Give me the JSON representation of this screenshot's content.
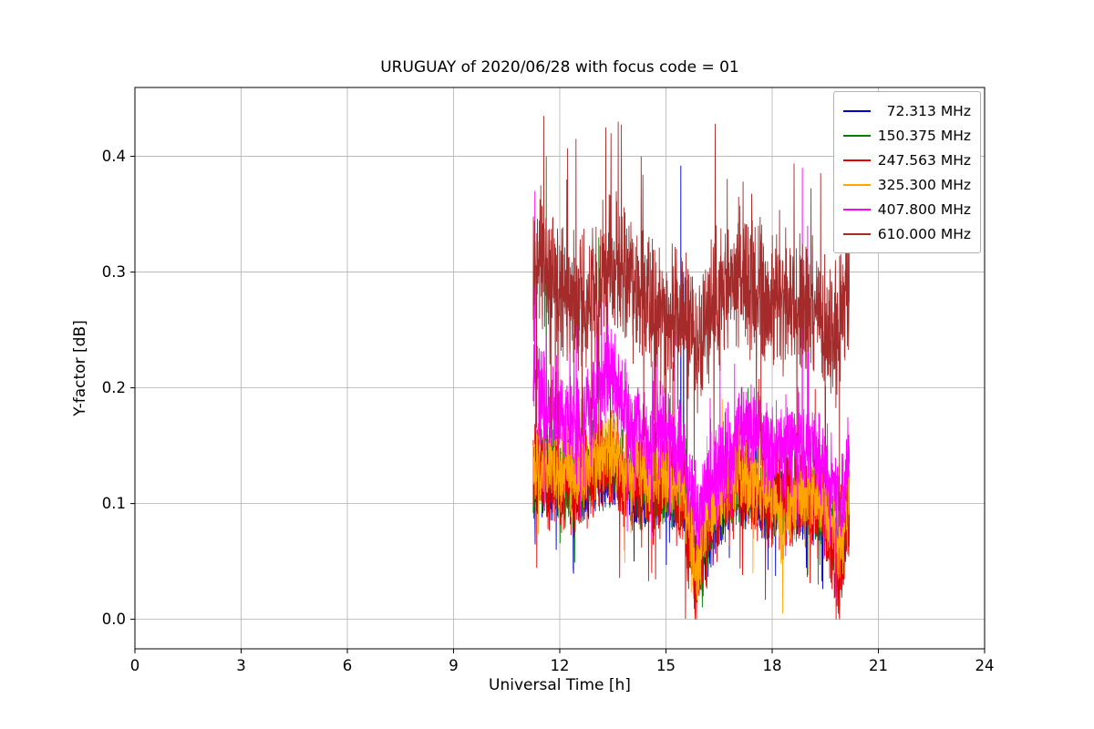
{
  "title": "URUGUAY of 2020/06/28 with focus code = 01",
  "chart_data": {
    "type": "line",
    "title": "URUGUAY of 2020/06/28 with focus code = 01",
    "xlabel": "Universal Time [h]",
    "ylabel": "Y-factor [dB]",
    "xlim": [
      0,
      24
    ],
    "ylim": [
      -0.0255,
      0.4595
    ],
    "xticks": [
      0,
      3,
      6,
      9,
      12,
      15,
      18,
      21,
      24
    ],
    "xtick_labels": [
      "0",
      "3",
      "6",
      "9",
      "12",
      "15",
      "18",
      "21",
      "24"
    ],
    "yticks": [
      0.0,
      0.1,
      0.2,
      0.3,
      0.4
    ],
    "ytick_labels": [
      "0.0",
      "0.1",
      "0.2",
      "0.3",
      "0.4"
    ],
    "grid": true,
    "grid_color": "#b0b0b0",
    "legend_position": "upper right",
    "data_x_range": [
      11.25,
      20.18
    ],
    "points_per_series": 1500,
    "noise_seed": 42,
    "series": [
      {
        "label": "  72.313 MHz",
        "color": "#0000cc",
        "amp": 0.035,
        "spike_prob": 0.03,
        "envelope": [
          [
            11.25,
            0.115
          ],
          [
            12,
            0.115
          ],
          [
            12.5,
            0.11
          ],
          [
            13,
            0.12
          ],
          [
            13.5,
            0.13
          ],
          [
            14,
            0.115
          ],
          [
            14.5,
            0.105
          ],
          [
            15,
            0.11
          ],
          [
            15.5,
            0.1
          ],
          [
            15.85,
            0.045
          ],
          [
            16.2,
            0.07
          ],
          [
            16.5,
            0.09
          ],
          [
            17,
            0.11
          ],
          [
            17.5,
            0.105
          ],
          [
            18,
            0.095
          ],
          [
            18.5,
            0.1
          ],
          [
            19,
            0.1
          ],
          [
            19.5,
            0.09
          ],
          [
            19.9,
            0.05
          ],
          [
            20.18,
            0.09
          ]
        ],
        "spikes": [
          [
            15.42,
            0.392
          ],
          [
            15.5,
            0.3
          ],
          [
            11.9,
            0.06
          ],
          [
            14.1,
            0.05
          ]
        ]
      },
      {
        "label": "150.375 MHz",
        "color": "#008000",
        "amp": 0.04,
        "spike_prob": 0.03,
        "envelope": [
          [
            11.25,
            0.12
          ],
          [
            11.6,
            0.14
          ],
          [
            12,
            0.12
          ],
          [
            12.5,
            0.115
          ],
          [
            13,
            0.125
          ],
          [
            13.5,
            0.135
          ],
          [
            14,
            0.12
          ],
          [
            14.5,
            0.11
          ],
          [
            15,
            0.115
          ],
          [
            15.5,
            0.105
          ],
          [
            15.85,
            0.05
          ],
          [
            16.2,
            0.075
          ],
          [
            16.5,
            0.095
          ],
          [
            17,
            0.115
          ],
          [
            17.5,
            0.11
          ],
          [
            18,
            0.1
          ],
          [
            18.5,
            0.105
          ],
          [
            19,
            0.105
          ],
          [
            19.5,
            0.095
          ],
          [
            19.9,
            0.055
          ],
          [
            20.18,
            0.095
          ]
        ],
        "spikes": [
          [
            11.62,
            0.4
          ],
          [
            13.1,
            0.33
          ],
          [
            16.05,
            0.02
          ],
          [
            19.3,
            0.03
          ]
        ]
      },
      {
        "label": "247.563 MHz",
        "color": "#e60000",
        "amp": 0.05,
        "spike_prob": 0.04,
        "envelope": [
          [
            11.25,
            0.125
          ],
          [
            12,
            0.12
          ],
          [
            12.5,
            0.115
          ],
          [
            13,
            0.13
          ],
          [
            13.5,
            0.14
          ],
          [
            14,
            0.12
          ],
          [
            14.5,
            0.11
          ],
          [
            15,
            0.12
          ],
          [
            15.5,
            0.105
          ],
          [
            15.82,
            0.03
          ],
          [
            16.2,
            0.08
          ],
          [
            16.5,
            0.1
          ],
          [
            17,
            0.12
          ],
          [
            17.5,
            0.115
          ],
          [
            18,
            0.1
          ],
          [
            18.5,
            0.105
          ],
          [
            19,
            0.105
          ],
          [
            19.5,
            0.095
          ],
          [
            19.9,
            0.03
          ],
          [
            20.18,
            0.1
          ]
        ],
        "spikes": [
          [
            15.82,
            0.0
          ],
          [
            19.9,
            0.0
          ],
          [
            12.3,
            0.21
          ],
          [
            14.6,
            0.04
          ]
        ]
      },
      {
        "label": "325.300 MHz",
        "color": "#ffa500",
        "amp": 0.04,
        "spike_prob": 0.03,
        "envelope": [
          [
            11.25,
            0.135
          ],
          [
            12,
            0.13
          ],
          [
            12.5,
            0.125
          ],
          [
            13,
            0.14
          ],
          [
            13.5,
            0.15
          ],
          [
            14,
            0.13
          ],
          [
            14.5,
            0.12
          ],
          [
            15,
            0.13
          ],
          [
            15.5,
            0.115
          ],
          [
            15.85,
            0.05
          ],
          [
            16.2,
            0.09
          ],
          [
            16.5,
            0.105
          ],
          [
            17,
            0.125
          ],
          [
            17.5,
            0.12
          ],
          [
            18,
            0.105
          ],
          [
            18.3,
            0.07
          ],
          [
            18.6,
            0.105
          ],
          [
            19,
            0.11
          ],
          [
            19.5,
            0.1
          ],
          [
            19.9,
            0.06
          ],
          [
            20.18,
            0.105
          ]
        ],
        "spikes": [
          [
            18.3,
            0.005
          ],
          [
            15.9,
            0.02
          ],
          [
            13.6,
            0.2
          ]
        ]
      },
      {
        "label": "407.800 MHz",
        "color": "#ff00ff",
        "amp": 0.05,
        "spike_prob": 0.04,
        "envelope": [
          [
            11.25,
            0.21
          ],
          [
            11.5,
            0.185
          ],
          [
            12,
            0.175
          ],
          [
            12.5,
            0.165
          ],
          [
            13,
            0.185
          ],
          [
            13.35,
            0.22
          ],
          [
            13.6,
            0.2
          ],
          [
            14,
            0.165
          ],
          [
            14.5,
            0.155
          ],
          [
            15,
            0.165
          ],
          [
            15.5,
            0.145
          ],
          [
            15.85,
            0.085
          ],
          [
            16.2,
            0.11
          ],
          [
            16.5,
            0.13
          ],
          [
            17,
            0.155
          ],
          [
            17.5,
            0.165
          ],
          [
            18,
            0.145
          ],
          [
            18.5,
            0.155
          ],
          [
            19,
            0.15
          ],
          [
            19.5,
            0.135
          ],
          [
            19.9,
            0.1
          ],
          [
            20.18,
            0.135
          ]
        ],
        "spikes": [
          [
            11.3,
            0.37
          ],
          [
            18.85,
            0.39
          ],
          [
            13.35,
            0.275
          ],
          [
            19.0,
            0.34
          ]
        ]
      },
      {
        "label": "610.000 MHz",
        "color": "#a52a2a",
        "amp": 0.07,
        "spike_prob": 0.05,
        "envelope": [
          [
            11.25,
            0.295
          ],
          [
            11.55,
            0.315
          ],
          [
            12,
            0.285
          ],
          [
            12.5,
            0.27
          ],
          [
            13,
            0.285
          ],
          [
            13.4,
            0.305
          ],
          [
            13.8,
            0.3
          ],
          [
            14,
            0.29
          ],
          [
            14.5,
            0.275
          ],
          [
            15,
            0.255
          ],
          [
            15.3,
            0.27
          ],
          [
            15.6,
            0.255
          ],
          [
            15.85,
            0.24
          ],
          [
            16.2,
            0.265
          ],
          [
            16.6,
            0.285
          ],
          [
            17,
            0.295
          ],
          [
            17.5,
            0.285
          ],
          [
            18,
            0.275
          ],
          [
            18.5,
            0.27
          ],
          [
            19,
            0.27
          ],
          [
            19.3,
            0.26
          ],
          [
            19.6,
            0.245
          ],
          [
            19.85,
            0.25
          ],
          [
            20.0,
            0.275
          ],
          [
            20.18,
            0.295
          ]
        ],
        "spikes": [
          [
            11.55,
            0.435
          ],
          [
            13.3,
            0.425
          ],
          [
            13.65,
            0.43
          ],
          [
            13.45,
            0.42
          ],
          [
            12.2,
            0.38
          ],
          [
            14.3,
            0.4
          ],
          [
            17.05,
            0.365
          ],
          [
            19.9,
            0.08
          ],
          [
            15.0,
            0.17
          ]
        ]
      }
    ]
  }
}
